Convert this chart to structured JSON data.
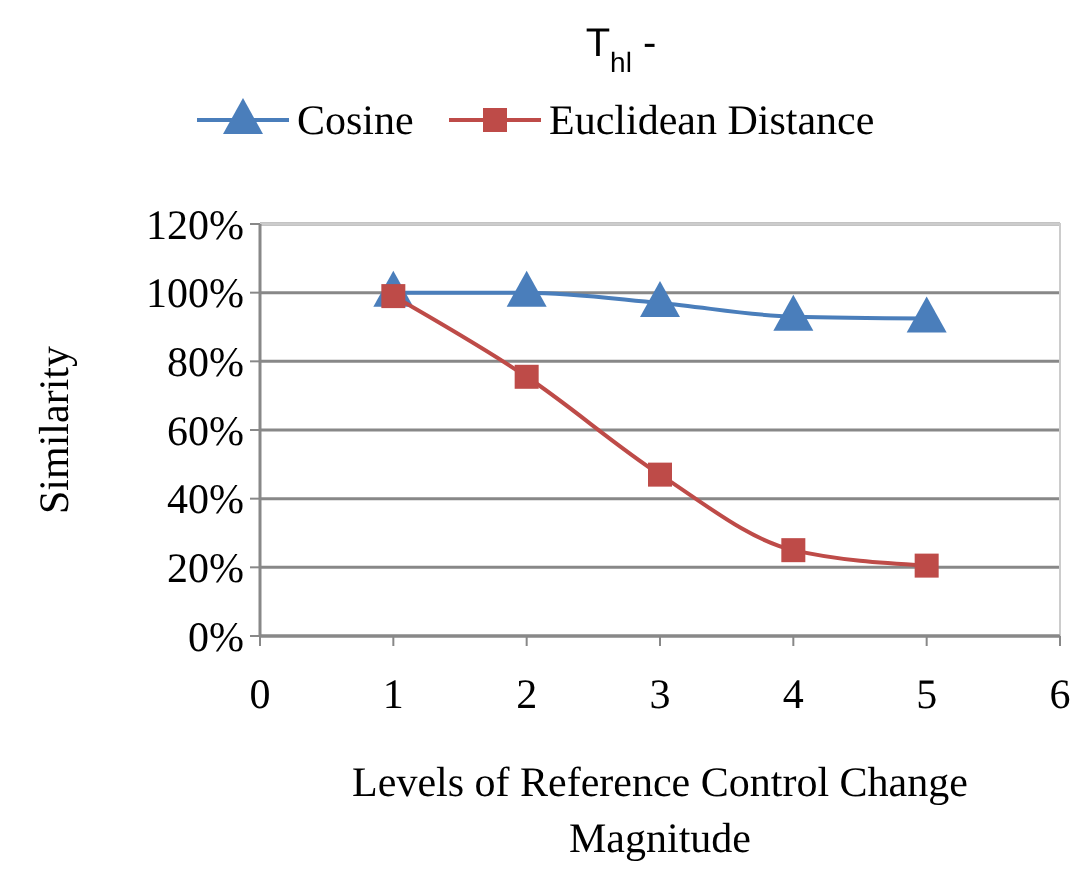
{
  "chart_data": {
    "type": "line",
    "title": "T$_{hl}$ -",
    "xlabel": "Levels of Reference Control Change Magnitude",
    "ylabel": "Similarity",
    "x": [
      1,
      2,
      3,
      4,
      5
    ],
    "series": [
      {
        "name": "Cosine",
        "color": "#4a7ebb",
        "marker": "triangle",
        "values": [
          100,
          100,
          97,
          93,
          92.5
        ]
      },
      {
        "name": "Euclidean Distance",
        "color": "#be4b48",
        "marker": "square",
        "values": [
          99,
          75.5,
          47,
          25,
          20.5
        ]
      }
    ],
    "xlim": [
      0,
      6
    ],
    "xticks": [
      0,
      1,
      2,
      3,
      4,
      5,
      6
    ],
    "ylim": [
      0,
      120
    ],
    "yticks": [
      {
        "value": 0,
        "label": "0%"
      },
      {
        "value": 20,
        "label": "20%"
      },
      {
        "value": 40,
        "label": "40%"
      },
      {
        "value": 60,
        "label": "60%"
      },
      {
        "value": 80,
        "label": "80%"
      },
      {
        "value": 100,
        "label": "100%"
      },
      {
        "value": 120,
        "label": "120%"
      }
    ],
    "grid": "y",
    "legend": "top"
  }
}
